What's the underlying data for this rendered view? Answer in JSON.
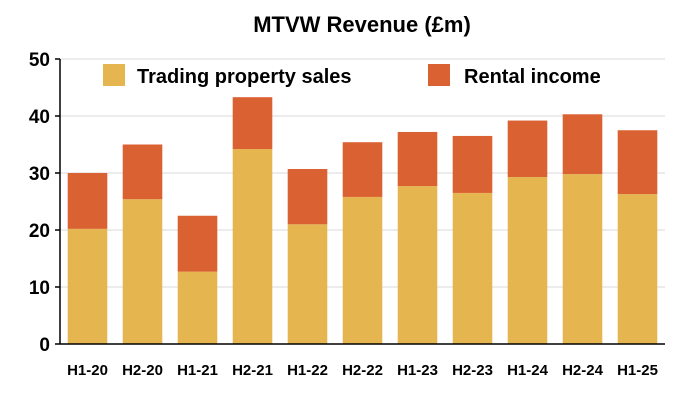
{
  "chart_data": {
    "type": "bar",
    "stacked": true,
    "title": "MTVW Revenue (£m)",
    "xlabel": "",
    "ylabel": "",
    "ylim": [
      0,
      50
    ],
    "yticks": [
      0,
      10,
      20,
      30,
      40,
      50
    ],
    "grid": true,
    "legend": "top",
    "categories": [
      "H1-20",
      "H2-20",
      "H1-21",
      "H2-21",
      "H1-22",
      "H2-22",
      "H1-23",
      "H2-23",
      "H1-24",
      "H2-24",
      "H1-25"
    ],
    "series": [
      {
        "name": "Trading property sales",
        "color": "#E5B64F",
        "values": [
          20.2,
          25.4,
          12.7,
          34.2,
          21.0,
          25.8,
          27.7,
          26.5,
          29.3,
          29.8,
          26.3
        ]
      },
      {
        "name": "Rental income",
        "color": "#DA6132",
        "values": [
          9.8,
          9.6,
          9.8,
          9.1,
          9.7,
          9.6,
          9.5,
          10.0,
          9.9,
          10.5,
          11.2
        ]
      }
    ]
  }
}
